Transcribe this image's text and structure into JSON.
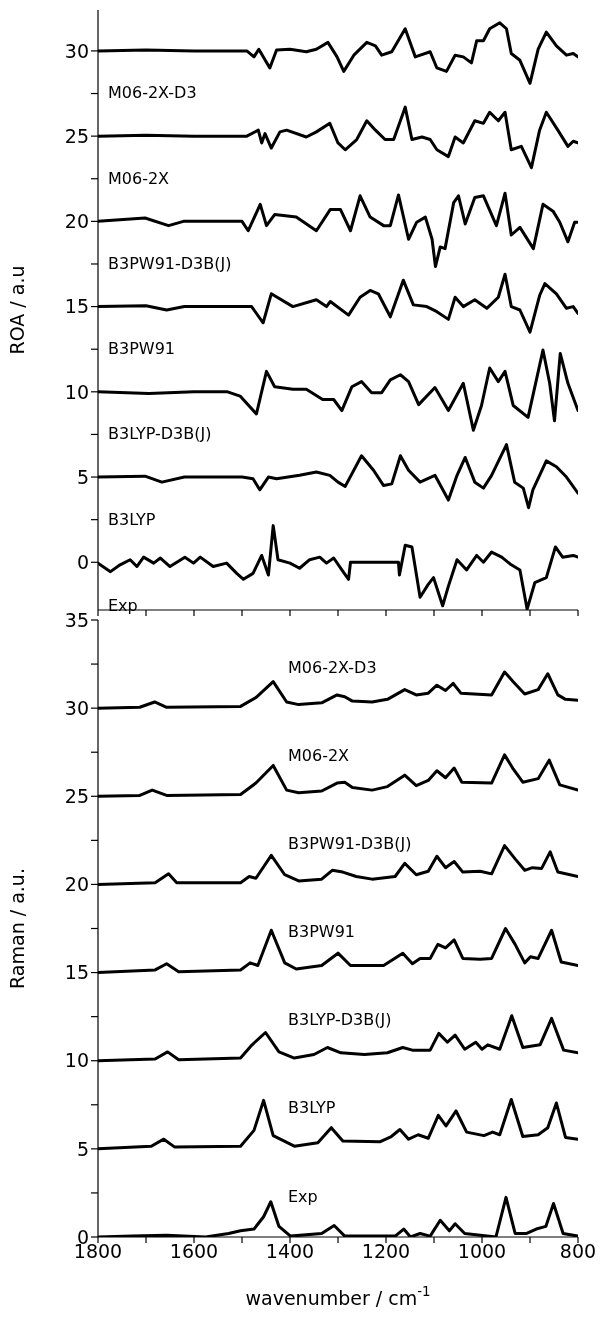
{
  "chart_data": [
    {
      "type": "line",
      "ylabel": "ROA / a.u",
      "xlim": [
        1800,
        800
      ],
      "xticks": [
        1800,
        {
          "value": 1700,
          "label": null
        },
        1600,
        {
          "value": 1500,
          "label": null
        },
        1400,
        {
          "value": 1300,
          "label": null
        },
        1200,
        {
          "value": 1100,
          "label": null
        },
        1000,
        {
          "value": 900,
          "label": null
        },
        800
      ],
      "ylim": [
        -2.8,
        32.4
      ],
      "yticks": [
        0,
        {
          "value": 2.5,
          "label": null
        },
        5,
        {
          "value": 7.5,
          "label": null
        },
        10,
        {
          "value": 12.5,
          "label": null
        },
        15,
        {
          "value": 17.5,
          "label": null
        },
        20,
        {
          "value": 22.5,
          "label": null
        },
        25,
        {
          "value": 27.5,
          "label": null
        },
        30
      ],
      "tick_labels": "y",
      "marker": "none",
      "line_style": "solid",
      "series": [
        {
          "name": "M06-2X-D3",
          "color": "#000000",
          "x": [
            1800,
            1700,
            1600,
            1490,
            1475,
            1465,
            1442,
            1428,
            1400,
            1366,
            1345,
            1321,
            1302,
            1288,
            1267,
            1240,
            1222,
            1209,
            1188,
            1160,
            1139,
            1108,
            1094,
            1074,
            1056,
            1039,
            1022,
            1011,
            997,
            984,
            963,
            949,
            939,
            921,
            900,
            883,
            866,
            845,
            824,
            810,
            800
          ],
          "values": [
            30,
            30.05,
            30,
            30,
            29.65,
            30.1,
            29.0,
            30.05,
            30.1,
            29.95,
            30.1,
            30.5,
            29.65,
            28.8,
            29.75,
            30.5,
            30.3,
            29.75,
            29.95,
            31.3,
            29.65,
            29.95,
            29.0,
            28.8,
            29.75,
            29.65,
            29.3,
            30.6,
            30.6,
            31.3,
            31.65,
            31.3,
            29.85,
            29.45,
            28.1,
            30.1,
            31.1,
            30.3,
            29.75,
            29.85,
            29.65
          ]
        },
        {
          "name": "M06-2X",
          "color": "#000000",
          "x": [
            1800,
            1700,
            1600,
            1490,
            1466,
            1459,
            1452,
            1439,
            1421,
            1407,
            1366,
            1345,
            1317,
            1300,
            1285,
            1261,
            1240,
            1222,
            1202,
            1184,
            1160,
            1146,
            1125,
            1108,
            1094,
            1070,
            1056,
            1039,
            1015,
            997,
            984,
            966,
            952,
            939,
            918,
            897,
            880,
            866,
            842,
            821,
            810,
            800
          ],
          "values": [
            25,
            25.05,
            25,
            25,
            25.35,
            24.6,
            25.15,
            24.3,
            25.25,
            25.35,
            24.95,
            25.25,
            25.75,
            24.6,
            24.2,
            24.8,
            25.9,
            25.35,
            24.8,
            24.8,
            26.7,
            24.8,
            24.95,
            24.8,
            24.2,
            23.8,
            24.95,
            24.6,
            25.9,
            25.75,
            26.4,
            25.9,
            26.4,
            24.2,
            24.4,
            23.15,
            25.35,
            26.4,
            25.35,
            24.4,
            24.7,
            24.6
          ]
        },
        {
          "name": "B3PW91-D3B(J)",
          "color": "#000000",
          "x": [
            1800,
            1702,
            1653,
            1622,
            1500,
            1487,
            1462,
            1449,
            1432,
            1387,
            1345,
            1316,
            1295,
            1274,
            1254,
            1233,
            1205,
            1191,
            1174,
            1153,
            1136,
            1118,
            1104,
            1097,
            1087,
            1077,
            1059,
            1049,
            1035,
            1015,
            997,
            970,
            952,
            939,
            921,
            893,
            873,
            852,
            838,
            821,
            807,
            800
          ],
          "values": [
            20,
            20.2,
            19.75,
            20,
            20,
            19.45,
            21.0,
            19.75,
            20.4,
            20.25,
            19.45,
            20.7,
            20.7,
            19.45,
            21.5,
            20.25,
            19.75,
            19.75,
            21.55,
            18.95,
            19.95,
            20.25,
            18.95,
            17.35,
            18.5,
            18.4,
            21.1,
            21.5,
            19.85,
            21.4,
            21.5,
            19.75,
            21.65,
            19.2,
            19.65,
            18.4,
            21.0,
            20.6,
            19.95,
            18.8,
            19.95,
            19.95
          ]
        },
        {
          "name": "B3PW91",
          "color": "#000000",
          "x": [
            1800,
            1700,
            1657,
            1620,
            1480,
            1456,
            1439,
            1394,
            1345,
            1324,
            1316,
            1278,
            1254,
            1233,
            1216,
            1191,
            1164,
            1143,
            1115,
            1094,
            1070,
            1056,
            1039,
            1015,
            990,
            966,
            952,
            939,
            921,
            900,
            880,
            869,
            845,
            824,
            810,
            800
          ],
          "values": [
            15,
            15.05,
            14.8,
            15,
            15,
            14.05,
            15.75,
            15,
            15.4,
            15,
            15.3,
            14.5,
            15.55,
            15.95,
            15.75,
            14.4,
            16.55,
            15.1,
            15,
            14.7,
            14.25,
            15.55,
            15,
            15.4,
            14.9,
            15.55,
            16.9,
            15,
            14.8,
            13.5,
            15.65,
            16.35,
            15.75,
            14.9,
            15,
            14.6
          ]
        },
        {
          "name": "B3LYP-D3B(J)",
          "color": "#000000",
          "x": [
            1800,
            1694,
            1600,
            1530,
            1504,
            1470,
            1449,
            1432,
            1394,
            1366,
            1332,
            1309,
            1292,
            1271,
            1251,
            1230,
            1209,
            1191,
            1170,
            1153,
            1132,
            1098,
            1070,
            1039,
            1018,
            1001,
            984,
            966,
            952,
            935,
            904,
            873,
            859,
            849,
            837,
            821,
            800
          ],
          "values": [
            10,
            9.9,
            10,
            10,
            9.75,
            8.7,
            11.2,
            10.3,
            10.15,
            10.15,
            9.55,
            9.55,
            8.9,
            10.3,
            10.6,
            9.95,
            9.95,
            10.7,
            11.0,
            10.6,
            9.25,
            10.25,
            8.9,
            10.5,
            7.75,
            9.2,
            11.4,
            10.6,
            11.2,
            9.2,
            8.5,
            12.45,
            10.5,
            8.3,
            12.25,
            10.5,
            8.9
          ]
        },
        {
          "name": "B3LYP",
          "color": "#000000",
          "x": [
            1800,
            1702,
            1667,
            1620,
            1500,
            1477,
            1463,
            1445,
            1428,
            1380,
            1345,
            1317,
            1300,
            1285,
            1251,
            1226,
            1205,
            1188,
            1170,
            1153,
            1129,
            1098,
            1070,
            1052,
            1035,
            1015,
            997,
            980,
            949,
            932,
            914,
            903,
            894,
            866,
            845,
            824,
            800
          ],
          "values": [
            5,
            5.05,
            4.7,
            5,
            5,
            4.9,
            4.25,
            5.0,
            4.9,
            5.1,
            5.3,
            5.1,
            4.7,
            4.45,
            6.25,
            5.4,
            4.5,
            4.6,
            6.25,
            5.4,
            4.7,
            5.1,
            3.65,
            5.1,
            6.15,
            4.7,
            4.35,
            5.1,
            6.9,
            4.7,
            4.35,
            3.2,
            4.25,
            5.95,
            5.6,
            5.0,
            4.05
          ]
        },
        {
          "name": "Exp",
          "color": "#000000",
          "x": [
            1800,
            1774,
            1754,
            1733,
            1719,
            1705,
            1684,
            1670,
            1650,
            1619,
            1601,
            1587,
            1560,
            1532,
            1511,
            1497,
            1477,
            1459,
            1445,
            1435,
            1425,
            1400,
            1380,
            1359,
            1338,
            1324,
            1309,
            1292,
            1278,
            1274,
            1174,
            1172,
            1160,
            1146,
            1129,
            1112,
            1101,
            1082,
            1070,
            1052,
            1032,
            1011,
            997,
            980,
            959,
            939,
            921,
            906,
            890,
            866,
            847,
            832,
            810,
            800
          ],
          "values": [
            -0.05,
            -0.55,
            -0.15,
            0.15,
            -0.25,
            0.3,
            -0.05,
            0.25,
            -0.25,
            0.3,
            -0.05,
            0.3,
            -0.25,
            -0.05,
            -0.65,
            -1.0,
            -0.65,
            0.4,
            -0.75,
            2.15,
            0.15,
            -0.05,
            -0.35,
            0.15,
            0.3,
            -0.05,
            0.25,
            -0.45,
            -1.0,
            0,
            0,
            -0.75,
            1.0,
            0.9,
            -2.05,
            -1.3,
            -0.9,
            -2.55,
            -1.4,
            0.15,
            -0.45,
            0.4,
            0,
            0.6,
            0.3,
            -0.15,
            -0.45,
            -2.75,
            -1.2,
            -0.9,
            0.9,
            0.3,
            0.4,
            0.3
          ]
        }
      ]
    },
    {
      "type": "line",
      "xlabel": "wavenumber / cm$^{-1}$",
      "ylabel": "Raman / a.u.",
      "xlim": [
        1800,
        800
      ],
      "xticks": [
        1800,
        {
          "value": 1700,
          "label": null
        },
        1600,
        {
          "value": 1500,
          "label": null
        },
        1400,
        {
          "value": 1300,
          "label": null
        },
        1200,
        {
          "value": 1100,
          "label": null
        },
        1000,
        {
          "value": 900,
          "label": null
        },
        800
      ],
      "ylim": [
        0,
        35
      ],
      "yticks": [
        0,
        {
          "value": 2.5,
          "label": null
        },
        5,
        {
          "value": 7.5,
          "label": null
        },
        10,
        {
          "value": 12.5,
          "label": null
        },
        15,
        {
          "value": 17.5,
          "label": null
        },
        20,
        {
          "value": 22.5,
          "label": null
        },
        25,
        {
          "value": 27.5,
          "label": null
        },
        30,
        {
          "value": 32.5,
          "label": null
        },
        35
      ],
      "marker": "none",
      "line_style": "solid",
      "series": [
        {
          "name": "M06-2X-D3",
          "color": "#000000",
          "x": [
            1800,
            1713,
            1682,
            1657,
            1503,
            1471,
            1435,
            1407,
            1382,
            1334,
            1302,
            1286,
            1270,
            1229,
            1197,
            1161,
            1137,
            1112,
            1094,
            1076,
            1060,
            1044,
            980,
            953,
            935,
            911,
            883,
            863,
            842,
            826,
            800
          ],
          "values": [
            30,
            30.05,
            30.35,
            30.05,
            30.1,
            30.6,
            31.5,
            30.35,
            30.2,
            30.3,
            30.75,
            30.65,
            30.4,
            30.35,
            30.5,
            31.05,
            30.75,
            30.85,
            31.3,
            31.0,
            31.4,
            30.85,
            30.75,
            32.05,
            31.5,
            30.8,
            31.05,
            31.95,
            30.75,
            30.5,
            30.45
          ]
        },
        {
          "name": "M06-2X",
          "color": "#000000",
          "x": [
            1800,
            1713,
            1687,
            1657,
            1503,
            1471,
            1435,
            1407,
            1382,
            1334,
            1302,
            1286,
            1270,
            1229,
            1197,
            1161,
            1137,
            1112,
            1094,
            1076,
            1058,
            1042,
            980,
            953,
            935,
            915,
            883,
            860,
            838,
            800
          ],
          "values": [
            25,
            25.05,
            25.35,
            25.05,
            25.1,
            25.75,
            26.75,
            25.35,
            25.2,
            25.3,
            25.75,
            25.8,
            25.5,
            25.35,
            25.55,
            26.2,
            25.6,
            25.9,
            26.45,
            26.05,
            26.6,
            25.8,
            25.75,
            27.35,
            26.55,
            25.8,
            26.0,
            27.05,
            25.65,
            25.35
          ]
        },
        {
          "name": "B3PW91-D3B(J)",
          "color": "#000000",
          "x": [
            1800,
            1681,
            1653,
            1636,
            1503,
            1485,
            1471,
            1439,
            1411,
            1382,
            1334,
            1312,
            1290,
            1262,
            1229,
            1181,
            1161,
            1137,
            1112,
            1094,
            1076,
            1058,
            1040,
            1004,
            980,
            953,
            931,
            911,
            895,
            876,
            858,
            842,
            800
          ],
          "values": [
            20,
            20.1,
            20.6,
            20.1,
            20.1,
            20.45,
            20.35,
            21.65,
            20.55,
            20.2,
            20.3,
            20.8,
            20.7,
            20.45,
            20.3,
            20.45,
            21.2,
            20.55,
            20.75,
            21.6,
            20.95,
            21.3,
            20.7,
            20.75,
            20.6,
            22.2,
            21.45,
            20.8,
            20.95,
            20.9,
            21.85,
            20.7,
            20.45
          ]
        },
        {
          "name": "B3PW91",
          "color": "#000000",
          "x": [
            1800,
            1681,
            1657,
            1632,
            1503,
            1483,
            1467,
            1439,
            1411,
            1387,
            1334,
            1300,
            1274,
            1205,
            1165,
            1145,
            1129,
            1108,
            1092,
            1076,
            1058,
            1040,
            1004,
            980,
            951,
            931,
            911,
            899,
            883,
            855,
            835,
            800
          ],
          "values": [
            15,
            15.15,
            15.5,
            15.05,
            15.15,
            15.55,
            15.4,
            17.4,
            15.55,
            15.2,
            15.4,
            16.1,
            15.4,
            15.4,
            16.1,
            15.5,
            15.8,
            15.8,
            16.6,
            16.4,
            16.85,
            15.8,
            15.75,
            15.8,
            17.5,
            16.6,
            15.55,
            15.9,
            15.8,
            17.4,
            15.6,
            15.4
          ]
        },
        {
          "name": "B3LYP-D3B(J)",
          "color": "#000000",
          "x": [
            1800,
            1681,
            1655,
            1632,
            1503,
            1479,
            1451,
            1423,
            1391,
            1350,
            1322,
            1294,
            1245,
            1197,
            1165,
            1145,
            1108,
            1090,
            1072,
            1056,
            1036,
            1013,
            1000,
            988,
            963,
            938,
            915,
            879,
            855,
            830,
            800
          ],
          "values": [
            10,
            10.1,
            10.5,
            10.05,
            10.15,
            10.9,
            11.6,
            10.5,
            10.15,
            10.35,
            10.75,
            10.45,
            10.35,
            10.45,
            10.75,
            10.6,
            10.6,
            11.55,
            11.05,
            11.45,
            10.65,
            11.05,
            10.65,
            10.9,
            10.65,
            12.55,
            10.75,
            10.9,
            12.4,
            10.6,
            10.45
          ]
        },
        {
          "name": "B3LYP",
          "color": "#000000",
          "x": [
            1800,
            1689,
            1663,
            1640,
            1503,
            1475,
            1455,
            1435,
            1391,
            1342,
            1314,
            1290,
            1213,
            1189,
            1171,
            1153,
            1133,
            1112,
            1091,
            1075,
            1054,
            1032,
            996,
            978,
            963,
            939,
            915,
            883,
            863,
            845,
            826,
            800
          ],
          "values": [
            5,
            5.15,
            5.55,
            5.1,
            5.15,
            6.05,
            7.75,
            5.75,
            5.15,
            5.35,
            6.2,
            5.45,
            5.4,
            5.7,
            6.1,
            5.55,
            5.8,
            5.6,
            6.9,
            6.3,
            7.15,
            5.95,
            5.75,
            5.95,
            5.8,
            7.8,
            5.7,
            5.8,
            6.2,
            7.6,
            5.65,
            5.55
          ]
        },
        {
          "name": "Exp",
          "color": "#000000",
          "x": [
            1800,
            1729,
            1657,
            1576,
            1528,
            1503,
            1475,
            1455,
            1440,
            1423,
            1399,
            1334,
            1308,
            1286,
            1181,
            1163,
            1149,
            1129,
            1108,
            1087,
            1068,
            1056,
            1036,
            971,
            950,
            931,
            907,
            887,
            867,
            851,
            831,
            800
          ],
          "values": [
            0,
            0.05,
            0.1,
            0,
            0.2,
            0.35,
            0.45,
            1.15,
            2.0,
            0.6,
            0.05,
            0.2,
            0.65,
            0.05,
            0.05,
            0.45,
            0,
            0.2,
            0.05,
            0.95,
            0.35,
            0.75,
            0.2,
            0,
            2.25,
            0.2,
            0.2,
            0.45,
            0.6,
            1.9,
            0.2,
            0.05
          ]
        }
      ]
    }
  ]
}
